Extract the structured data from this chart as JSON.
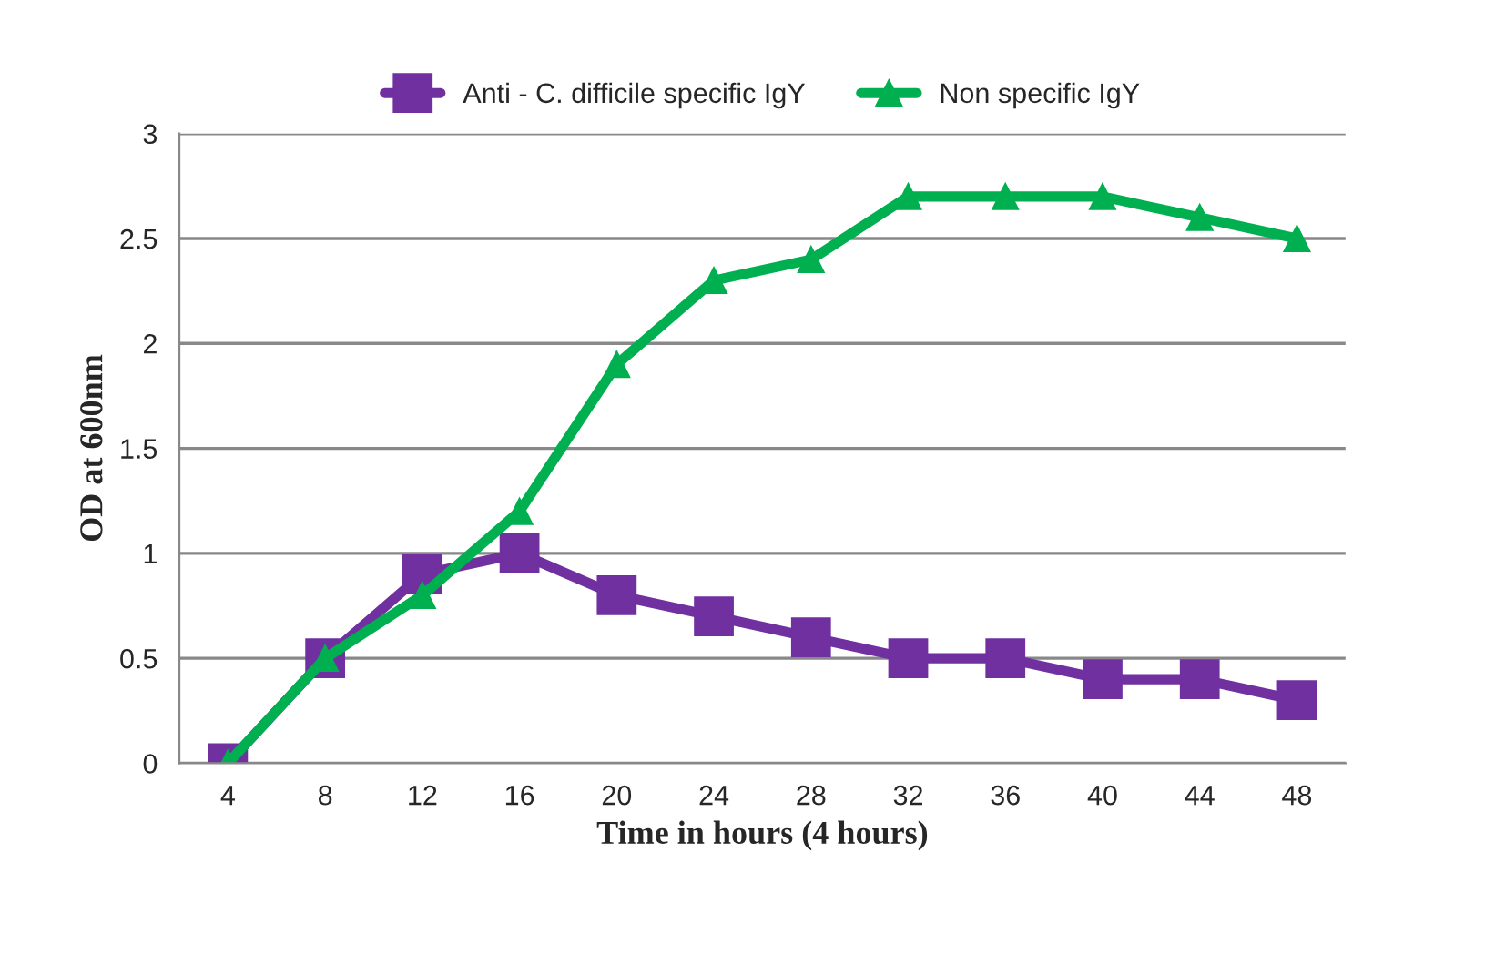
{
  "chart_data": {
    "type": "line",
    "xlabel": "Time in hours (4 hours)",
    "ylabel": "OD at 600nm",
    "categories": [
      "4",
      "8",
      "12",
      "16",
      "20",
      "24",
      "28",
      "32",
      "36",
      "40",
      "44",
      "48"
    ],
    "series": [
      {
        "name": "Anti - C. difficile specific IgY",
        "color": "#7030a0",
        "marker": "square",
        "values": [
          0,
          0.5,
          0.9,
          1.0,
          0.8,
          0.7,
          0.6,
          0.5,
          0.5,
          0.4,
          0.4,
          0.3
        ]
      },
      {
        "name": "Non specific IgY",
        "color": "#00b050",
        "marker": "triangle",
        "values": [
          0,
          0.5,
          0.8,
          1.2,
          1.9,
          2.3,
          2.4,
          2.7,
          2.7,
          2.7,
          2.6,
          2.5
        ]
      }
    ],
    "ylim": [
      0,
      3
    ],
    "yticks": [
      0,
      0.5,
      1,
      1.5,
      2,
      2.5,
      3
    ],
    "grid": "y",
    "legend": "top",
    "line_style": "solid"
  }
}
